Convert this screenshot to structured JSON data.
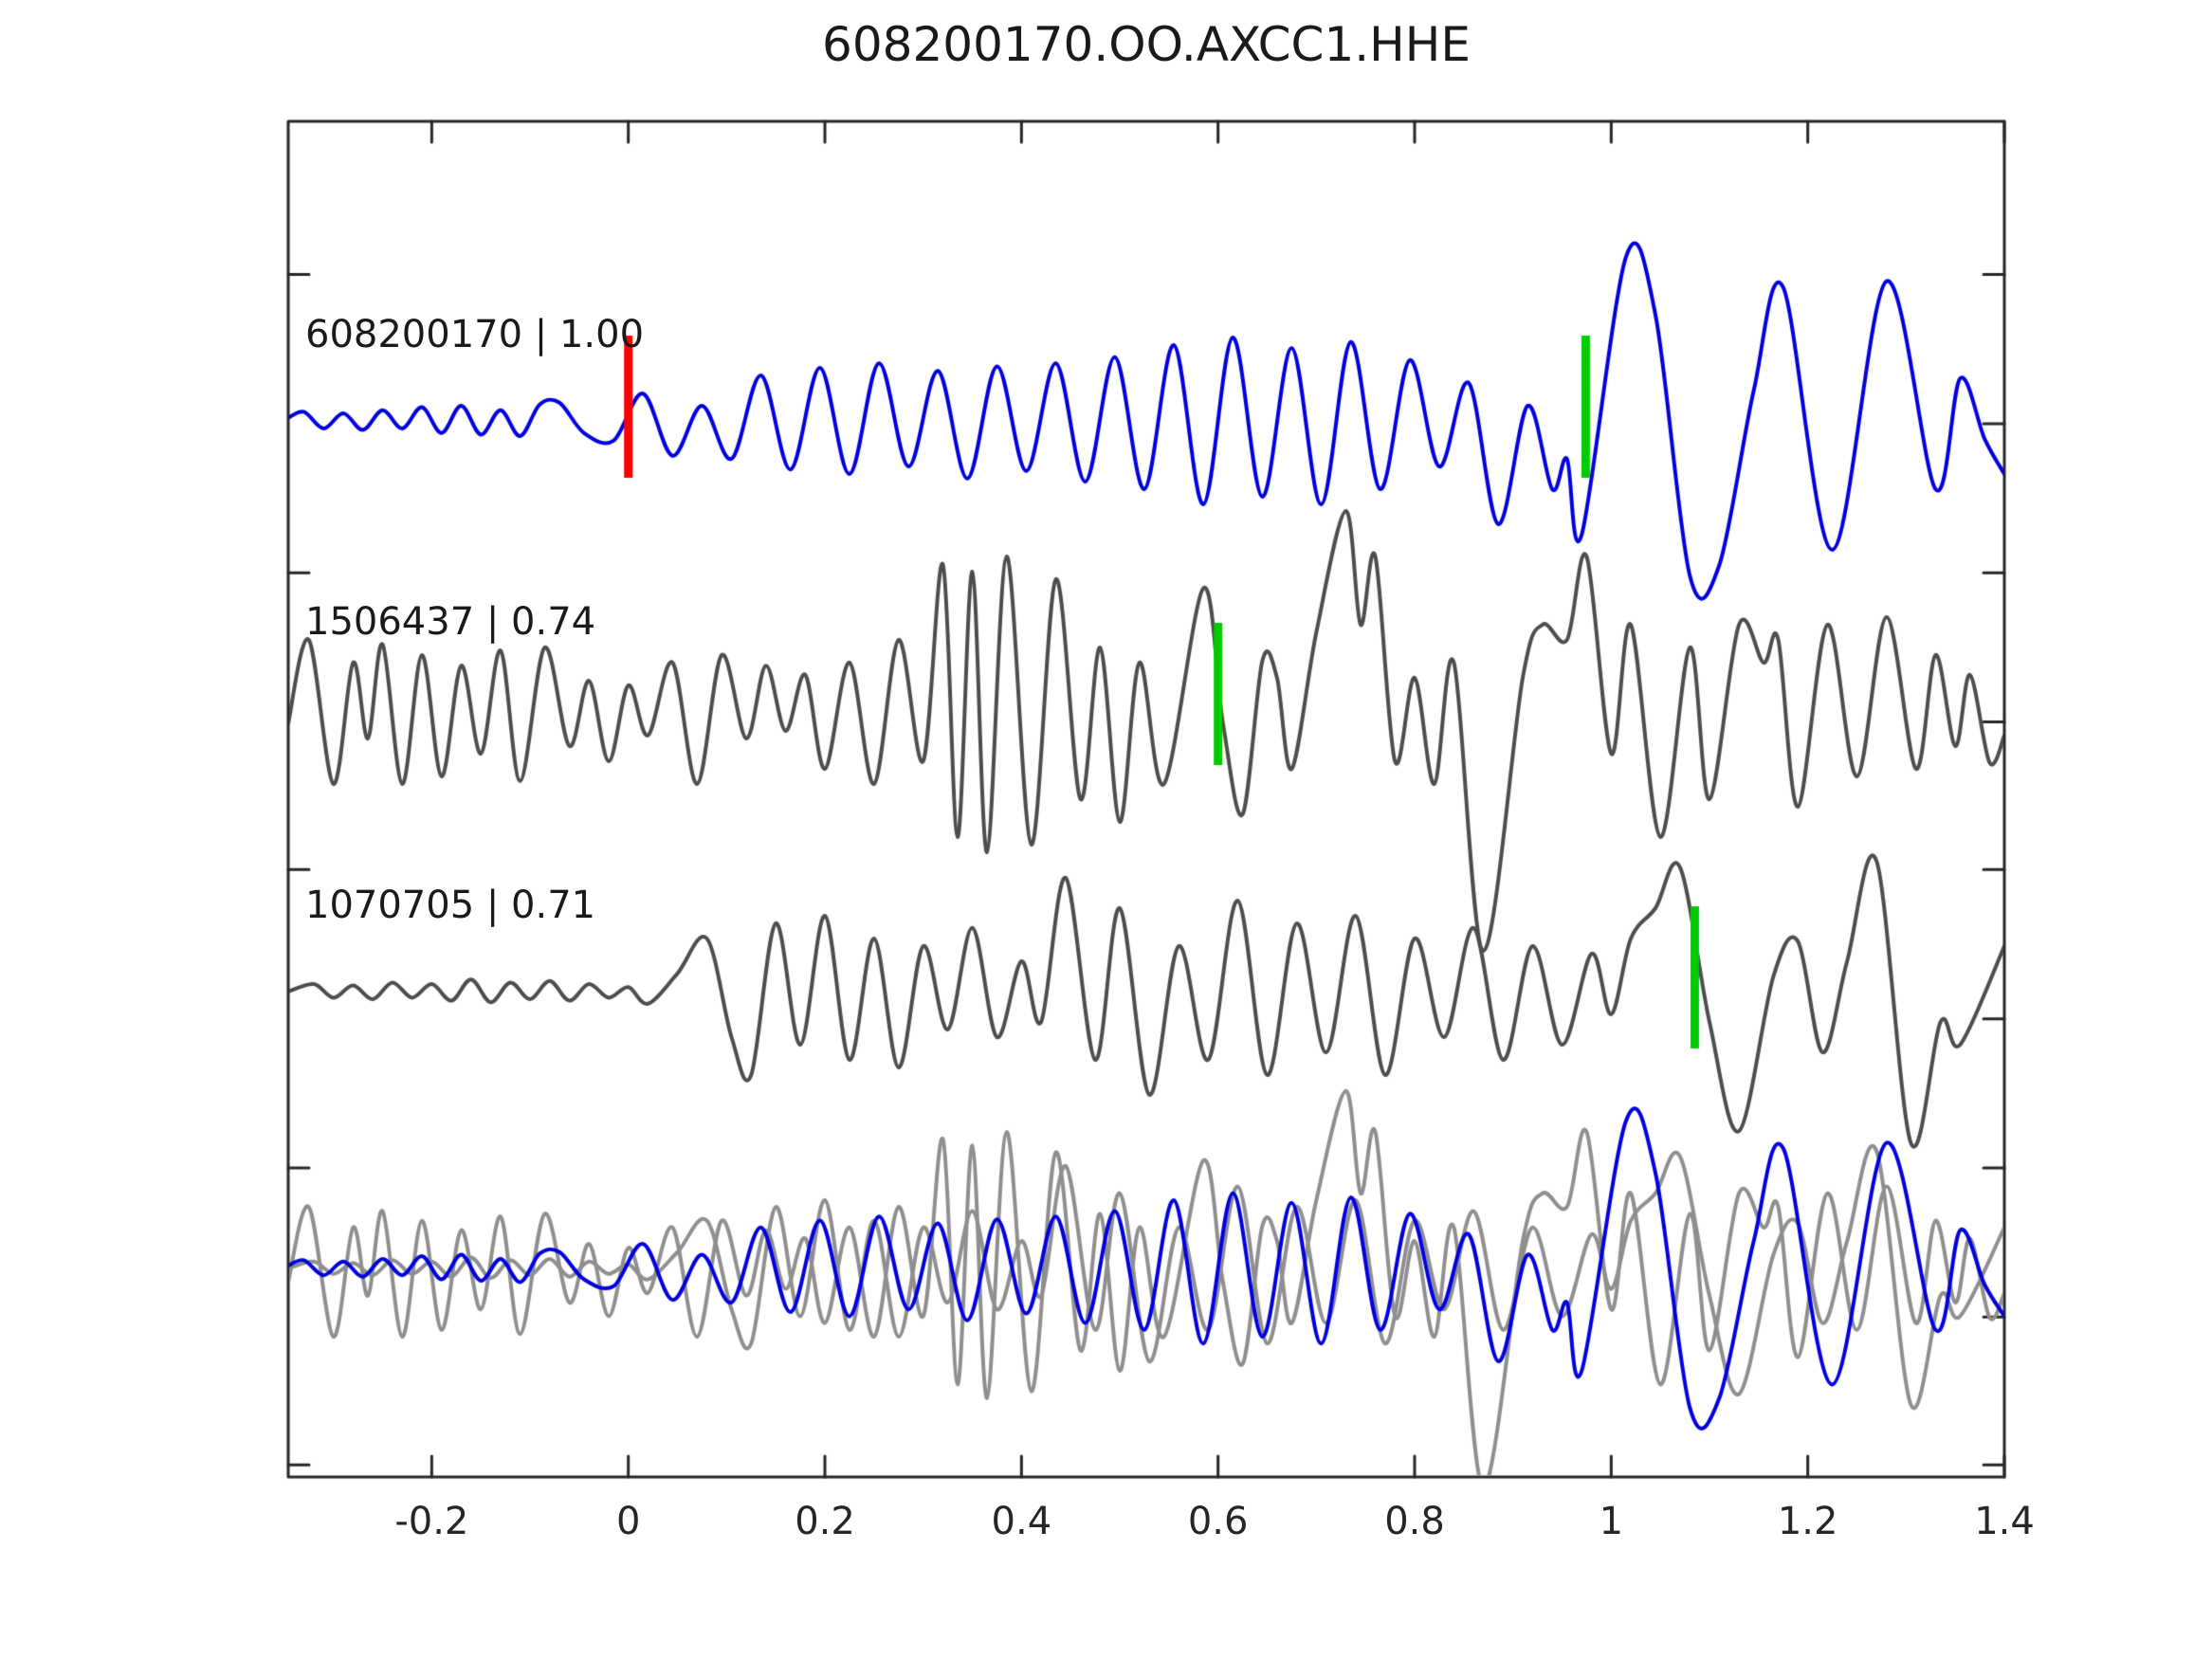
{
  "page": {
    "title": "608200170.OO.AXCC1.HHE"
  },
  "colors": {
    "background": "#ffffff",
    "axis": "#262626",
    "text": "#1a1a1a",
    "reference_trace": "#0000e0",
    "detection_trace": "#4d4d4d",
    "overlay_gray": "#8f8f8f",
    "origin_marker": "#ff0000",
    "pick_marker": "#00cc00"
  },
  "chart_data": {
    "type": "line",
    "title": "608200170.OO.AXCC1.HHE",
    "xlim": [
      -0.346,
      1.4
    ],
    "grid": false,
    "legend": "none",
    "x_axis": {
      "ticks": [
        -0.2,
        0,
        0.2,
        0.4,
        0.6,
        0.8,
        1,
        1.2,
        1.4
      ],
      "labels": [
        "-0.2",
        "0",
        "0.2",
        "0.4",
        "0.6",
        "0.8",
        "1",
        "1.2",
        "1.4"
      ]
    },
    "traces": [
      {
        "id": "608200170",
        "label": "608200170 | 1.00",
        "event_id": "608200170",
        "correlation": "1.00",
        "color": "#0000e0",
        "row": 0,
        "markers": [
          {
            "t": 0.0,
            "color": "#ff0000",
            "kind": "origin-pick"
          },
          {
            "t": 0.974,
            "color": "#00cc00",
            "kind": "phase-pick"
          }
        ],
        "points": [
          [
            -0.346,
            0.02
          ],
          [
            -0.33,
            0.06
          ],
          [
            -0.31,
            -0.05
          ],
          [
            -0.29,
            0.05
          ],
          [
            -0.27,
            -0.06
          ],
          [
            -0.25,
            0.07
          ],
          [
            -0.23,
            -0.05
          ],
          [
            -0.21,
            0.09
          ],
          [
            -0.19,
            -0.08
          ],
          [
            -0.17,
            0.1
          ],
          [
            -0.15,
            -0.09
          ],
          [
            -0.13,
            0.07
          ],
          [
            -0.11,
            -0.1
          ],
          [
            -0.09,
            0.11
          ],
          [
            -0.07,
            0.12
          ],
          [
            -0.045,
            -0.08
          ],
          [
            -0.015,
            -0.13
          ],
          [
            0.015,
            0.18
          ],
          [
            0.045,
            -0.23
          ],
          [
            0.075,
            0.1
          ],
          [
            0.105,
            -0.25
          ],
          [
            0.135,
            0.3
          ],
          [
            0.165,
            -0.32
          ],
          [
            0.195,
            0.35
          ],
          [
            0.225,
            -0.35
          ],
          [
            0.255,
            0.38
          ],
          [
            0.285,
            -0.3
          ],
          [
            0.315,
            0.33
          ],
          [
            0.345,
            -0.38
          ],
          [
            0.375,
            0.36
          ],
          [
            0.405,
            -0.33
          ],
          [
            0.435,
            0.38
          ],
          [
            0.465,
            -0.4
          ],
          [
            0.495,
            0.42
          ],
          [
            0.525,
            -0.45
          ],
          [
            0.555,
            0.5
          ],
          [
            0.585,
            -0.55
          ],
          [
            0.615,
            0.55
          ],
          [
            0.645,
            -0.5
          ],
          [
            0.675,
            0.48
          ],
          [
            0.705,
            -0.55
          ],
          [
            0.735,
            0.52
          ],
          [
            0.765,
            -0.45
          ],
          [
            0.795,
            0.4
          ],
          [
            0.825,
            -0.3
          ],
          [
            0.855,
            0.25
          ],
          [
            0.885,
            -0.68
          ],
          [
            0.915,
            0.1
          ],
          [
            0.94,
            -0.45
          ],
          [
            0.955,
            -0.25
          ],
          [
            0.97,
            -0.75
          ],
          [
            1.015,
            1.08
          ],
          [
            1.045,
            0.7
          ],
          [
            1.08,
            -1.02
          ],
          [
            1.11,
            -0.95
          ],
          [
            1.145,
            0.2
          ],
          [
            1.175,
            0.88
          ],
          [
            1.225,
            -0.85
          ],
          [
            1.28,
            0.92
          ],
          [
            1.33,
            -0.45
          ],
          [
            1.355,
            0.28
          ],
          [
            1.38,
            -0.12
          ],
          [
            1.4,
            -0.35
          ]
        ]
      },
      {
        "id": "1506437",
        "label": "1506437 | 0.74",
        "event_id": "1506437",
        "correlation": "0.74",
        "color": "#4d4d4d",
        "row": 1,
        "markers": [
          {
            "t": 0.6,
            "color": "#00cc00",
            "kind": "phase-pick"
          }
        ],
        "points": [
          [
            -0.346,
            -0.1
          ],
          [
            -0.325,
            0.45
          ],
          [
            -0.3,
            -0.5
          ],
          [
            -0.28,
            0.3
          ],
          [
            -0.265,
            -0.2
          ],
          [
            -0.25,
            0.42
          ],
          [
            -0.23,
            -0.5
          ],
          [
            -0.21,
            0.35
          ],
          [
            -0.19,
            -0.45
          ],
          [
            -0.17,
            0.28
          ],
          [
            -0.15,
            -0.3
          ],
          [
            -0.13,
            0.38
          ],
          [
            -0.11,
            -0.48
          ],
          [
            -0.085,
            0.4
          ],
          [
            -0.06,
            -0.25
          ],
          [
            -0.04,
            0.18
          ],
          [
            -0.02,
            -0.35
          ],
          [
            0.0,
            0.15
          ],
          [
            0.02,
            -0.18
          ],
          [
            0.045,
            0.3
          ],
          [
            0.07,
            -0.5
          ],
          [
            0.095,
            0.35
          ],
          [
            0.12,
            -0.2
          ],
          [
            0.14,
            0.28
          ],
          [
            0.16,
            -0.15
          ],
          [
            0.18,
            0.22
          ],
          [
            0.2,
            -0.4
          ],
          [
            0.225,
            0.3
          ],
          [
            0.25,
            -0.5
          ],
          [
            0.275,
            0.45
          ],
          [
            0.3,
            -0.35
          ],
          [
            0.32,
            0.95
          ],
          [
            0.335,
            -0.85
          ],
          [
            0.35,
            0.9
          ],
          [
            0.365,
            -0.95
          ],
          [
            0.385,
            1.0
          ],
          [
            0.41,
            -0.9
          ],
          [
            0.435,
            0.85
          ],
          [
            0.46,
            -0.6
          ],
          [
            0.48,
            0.4
          ],
          [
            0.5,
            -0.75
          ],
          [
            0.52,
            0.3
          ],
          [
            0.545,
            -0.5
          ],
          [
            0.585,
            0.79
          ],
          [
            0.605,
            -0.1
          ],
          [
            0.625,
            -0.7
          ],
          [
            0.645,
            0.31
          ],
          [
            0.66,
            0.2
          ],
          [
            0.675,
            -0.4
          ],
          [
            0.7,
            0.5
          ],
          [
            0.73,
            1.3
          ],
          [
            0.745,
            0.55
          ],
          [
            0.76,
            1.0
          ],
          [
            0.78,
            -0.35
          ],
          [
            0.8,
            0.2
          ],
          [
            0.82,
            -0.5
          ],
          [
            0.84,
            0.3
          ],
          [
            0.87,
            -1.6
          ],
          [
            0.91,
            0.2
          ],
          [
            0.93,
            0.55
          ],
          [
            0.955,
            0.45
          ],
          [
            0.975,
            1.0
          ],
          [
            1.0,
            -0.3
          ],
          [
            1.02,
            0.55
          ],
          [
            1.05,
            -0.85
          ],
          [
            1.08,
            0.4
          ],
          [
            1.1,
            -0.6
          ],
          [
            1.13,
            0.55
          ],
          [
            1.155,
            0.3
          ],
          [
            1.17,
            0.45
          ],
          [
            1.19,
            -0.65
          ],
          [
            1.22,
            0.55
          ],
          [
            1.25,
            -0.45
          ],
          [
            1.28,
            0.6
          ],
          [
            1.31,
            -0.4
          ],
          [
            1.33,
            0.35
          ],
          [
            1.35,
            -0.25
          ],
          [
            1.365,
            0.22
          ],
          [
            1.385,
            -0.36
          ],
          [
            1.4,
            -0.18
          ]
        ]
      },
      {
        "id": "1070705",
        "label": "1070705 | 0.71",
        "event_id": "1070705",
        "correlation": "0.71",
        "color": "#4d4d4d",
        "row": 2,
        "markers": [
          {
            "t": 1.085,
            "color": "#00cc00",
            "kind": "phase-pick"
          }
        ],
        "points": [
          [
            -0.346,
            0.0
          ],
          [
            -0.32,
            0.05
          ],
          [
            -0.3,
            -0.04
          ],
          [
            -0.28,
            0.04
          ],
          [
            -0.26,
            -0.05
          ],
          [
            -0.24,
            0.06
          ],
          [
            -0.22,
            -0.04
          ],
          [
            -0.2,
            0.05
          ],
          [
            -0.18,
            -0.06
          ],
          [
            -0.16,
            0.08
          ],
          [
            -0.14,
            -0.07
          ],
          [
            -0.12,
            0.06
          ],
          [
            -0.1,
            -0.05
          ],
          [
            -0.08,
            0.07
          ],
          [
            -0.06,
            -0.06
          ],
          [
            -0.04,
            0.05
          ],
          [
            -0.02,
            -0.04
          ],
          [
            0.0,
            0.03
          ],
          [
            0.02,
            -0.08
          ],
          [
            0.05,
            0.12
          ],
          [
            0.08,
            0.35
          ],
          [
            0.105,
            -0.3
          ],
          [
            0.125,
            -0.55
          ],
          [
            0.15,
            0.45
          ],
          [
            0.175,
            -0.35
          ],
          [
            0.2,
            0.5
          ],
          [
            0.225,
            -0.45
          ],
          [
            0.25,
            0.35
          ],
          [
            0.275,
            -0.5
          ],
          [
            0.3,
            0.3
          ],
          [
            0.325,
            -0.25
          ],
          [
            0.35,
            0.42
          ],
          [
            0.375,
            -0.3
          ],
          [
            0.4,
            0.2
          ],
          [
            0.42,
            -0.2
          ],
          [
            0.445,
            0.75
          ],
          [
            0.475,
            -0.45
          ],
          [
            0.5,
            0.55
          ],
          [
            0.53,
            -0.68
          ],
          [
            0.56,
            0.3
          ],
          [
            0.59,
            -0.45
          ],
          [
            0.62,
            0.6
          ],
          [
            0.65,
            -0.55
          ],
          [
            0.68,
            0.45
          ],
          [
            0.71,
            -0.4
          ],
          [
            0.74,
            0.5
          ],
          [
            0.77,
            -0.55
          ],
          [
            0.8,
            0.35
          ],
          [
            0.83,
            -0.3
          ],
          [
            0.86,
            0.42
          ],
          [
            0.89,
            -0.45
          ],
          [
            0.92,
            0.3
          ],
          [
            0.95,
            -0.35
          ],
          [
            0.98,
            0.25
          ],
          [
            1.0,
            -0.15
          ],
          [
            1.02,
            0.35
          ],
          [
            1.045,
            0.55
          ],
          [
            1.07,
            0.82
          ],
          [
            1.1,
            -0.2
          ],
          [
            1.13,
            -0.92
          ],
          [
            1.165,
            0.1
          ],
          [
            1.19,
            0.33
          ],
          [
            1.215,
            -0.4
          ],
          [
            1.24,
            0.2
          ],
          [
            1.27,
            0.86
          ],
          [
            1.305,
            -1.0
          ],
          [
            1.335,
            -0.2
          ],
          [
            1.355,
            -0.35
          ],
          [
            1.4,
            0.3
          ]
        ]
      }
    ],
    "overlay": {
      "row": 3,
      "description": "all three traces superimposed",
      "order": [
        "1506437",
        "1070705",
        "608200170"
      ],
      "colors": {
        "608200170": "#0000e0",
        "1506437": "#8f8f8f",
        "1070705": "#8f8f8f"
      },
      "scale": 0.9
    }
  }
}
